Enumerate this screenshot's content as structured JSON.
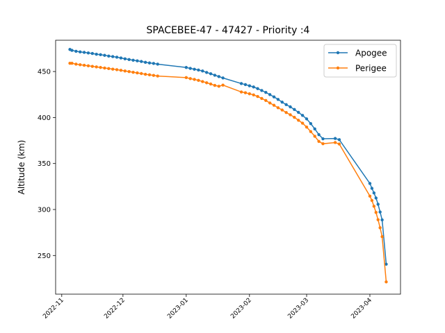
{
  "chart_data": {
    "type": "line",
    "title": "SPACEBEE-47 - 47427 - Priority :4",
    "xlabel": "",
    "ylabel": "Altitude (km)",
    "x_type": "date",
    "xlim": [
      "2022-10-29",
      "2023-04-16"
    ],
    "ylim": [
      208,
      484
    ],
    "x_ticks": [
      "2022-11",
      "2022-12",
      "2023-01",
      "2023-02",
      "2023-03",
      "2023-04"
    ],
    "y_ticks": [
      250,
      300,
      350,
      400,
      450
    ],
    "grid": false,
    "legend_position": "top-right",
    "colors": {
      "Apogee": "#1f77b4",
      "Perigee": "#ff7f0e"
    },
    "x": [
      "2022-11-05",
      "2022-11-06",
      "2022-11-08",
      "2022-11-10",
      "2022-11-12",
      "2022-11-14",
      "2022-11-16",
      "2022-11-18",
      "2022-11-20",
      "2022-11-22",
      "2022-11-24",
      "2022-11-26",
      "2022-11-28",
      "2022-11-30",
      "2022-12-02",
      "2022-12-04",
      "2022-12-06",
      "2022-12-08",
      "2022-12-10",
      "2022-12-12",
      "2022-12-14",
      "2022-12-16",
      "2022-12-18",
      "2023-01-01",
      "2023-01-03",
      "2023-01-05",
      "2023-01-07",
      "2023-01-09",
      "2023-01-11",
      "2023-01-13",
      "2023-01-15",
      "2023-01-17",
      "2023-01-19",
      "2023-01-28",
      "2023-01-30",
      "2023-02-01",
      "2023-02-03",
      "2023-02-05",
      "2023-02-07",
      "2023-02-09",
      "2023-02-11",
      "2023-02-13",
      "2023-02-15",
      "2023-02-17",
      "2023-02-19",
      "2023-02-21",
      "2023-02-23",
      "2023-02-25",
      "2023-02-27",
      "2023-03-01",
      "2023-03-03",
      "2023-03-05",
      "2023-03-07",
      "2023-03-09",
      "2023-03-15",
      "2023-03-17",
      "2023-04-01",
      "2023-04-02",
      "2023-04-03",
      "2023-04-04",
      "2023-04-05",
      "2023-04-06",
      "2023-04-07",
      "2023-04-09"
    ],
    "series": [
      {
        "name": "Apogee",
        "values": [
          474,
          473,
          472,
          471.3,
          470.8,
          470.2,
          469.6,
          468.8,
          468.3,
          467.6,
          466.8,
          466.2,
          465.6,
          464.7,
          463.8,
          463.0,
          462.3,
          461.6,
          460.9,
          460.0,
          459.3,
          458.8,
          458.0,
          454.4,
          453.4,
          452.5,
          451.6,
          450.6,
          449.0,
          447.6,
          446.0,
          444.5,
          443.0,
          436.9,
          435.8,
          434.5,
          433.2,
          431.4,
          429.4,
          427.3,
          424.9,
          422.4,
          419.7,
          416.7,
          414.0,
          411.6,
          408.7,
          405.6,
          402.3,
          398.5,
          393.4,
          387.6,
          381.4,
          376.9,
          377.2,
          375.9,
          328.3,
          323.0,
          318.0,
          312.5,
          305.7,
          297.3,
          288.7,
          240.6
        ]
      },
      {
        "name": "Perigee",
        "values": [
          459,
          459,
          458,
          457.4,
          456.8,
          456.2,
          455.6,
          455.0,
          454.4,
          453.8,
          453.2,
          452.6,
          452.0,
          451.3,
          450.6,
          449.9,
          449.2,
          448.5,
          447.8,
          447.0,
          446.4,
          445.8,
          445.1,
          443.4,
          442.3,
          441.4,
          440.4,
          439.1,
          437.8,
          436.4,
          434.9,
          434.0,
          435.2,
          427.8,
          426.9,
          425.8,
          424.6,
          422.9,
          420.7,
          418.5,
          415.8,
          413.3,
          410.6,
          408.2,
          405.4,
          403.0,
          400.2,
          397.0,
          393.8,
          389.6,
          384.7,
          379.6,
          374.0,
          371.5,
          372.8,
          371.2,
          314.6,
          309.8,
          303.5,
          296.8,
          288.9,
          280.2,
          270.5,
          221.3
        ]
      }
    ]
  }
}
